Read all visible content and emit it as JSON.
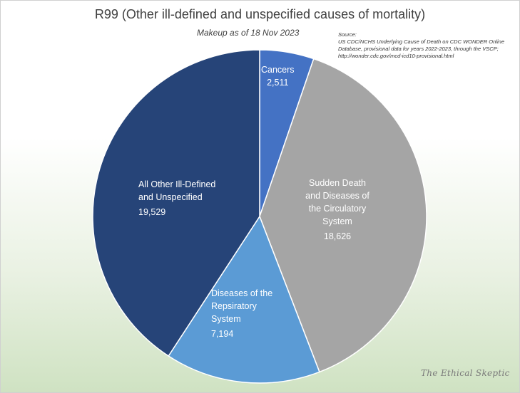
{
  "chart_data": {
    "type": "pie",
    "title": "R99 (Other ill-defined and unspecified causes of mortality)",
    "subtitle": "Makeup as of 18 Nov 2023",
    "source_label": "Source:",
    "source_text": "US CDC/NCHS Underlying Cause of Death on CDC WONDER Online Database, provisional data for years 2022-2023, through the VSCP; http://wonder.cdc.gov/mcd-icd10-provisional.html",
    "slices": [
      {
        "label": "Cancers",
        "value": 2511,
        "display": "2,511",
        "color": "#4472c4"
      },
      {
        "label": "Sudden Death and Diseases of the Circulatory System",
        "value": 18626,
        "display": "18,626",
        "color": "#a5a5a5"
      },
      {
        "label": "Diseases of the Repsiratory System",
        "value": 7194,
        "display": "7,194",
        "color": "#5b9bd5"
      },
      {
        "label": "All Other Ill-Defined and Unspecified",
        "value": 19529,
        "display": "19,529",
        "color": "#264478"
      }
    ]
  },
  "labels": {
    "cancers": [
      "Cancers"
    ],
    "circulatory": [
      "Sudden Death",
      "and Diseases of",
      "the Circulatory",
      "System"
    ],
    "respiratory": [
      "Diseases of the",
      "Repsiratory",
      "System"
    ],
    "other": [
      "All Other Ill-Defined",
      "and Unspecified"
    ]
  },
  "watermark": "The Ethical Skeptic"
}
